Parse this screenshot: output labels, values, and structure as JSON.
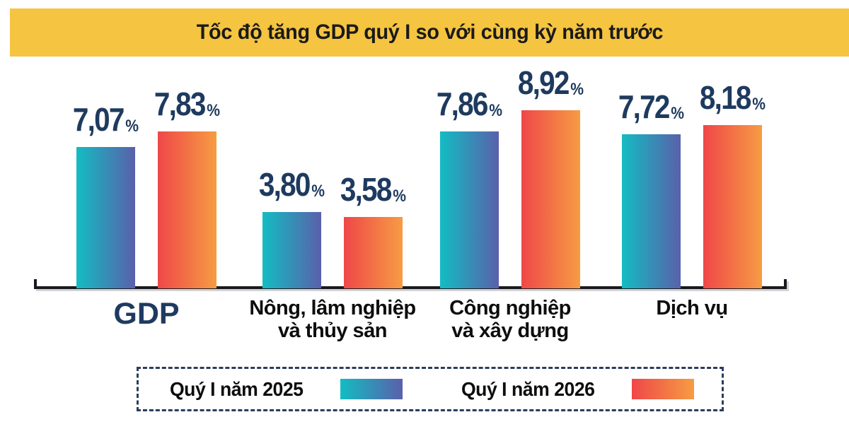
{
  "title": "Tốc độ tăng GDP quý I so với cùng kỳ năm trước",
  "colors": {
    "title_bg": "#F5C440",
    "title_text": "#1A1A1A",
    "series1_gradient_start": "#13BCC2",
    "series1_gradient_end": "#5A60AB",
    "series2_gradient_start": "#EF4748",
    "series2_gradient_end": "#F69C43",
    "value_label": "#1E3A5E",
    "gdp_label": "#1F3A60",
    "category_label": "#0D0D0D",
    "axis": "#191920",
    "legend_border": "#2B3D5C"
  },
  "chart_data": {
    "type": "bar",
    "title": "Tốc độ tăng GDP quý I so với cùng kỳ năm trước",
    "unit": "%",
    "categories": [
      "GDP",
      "Nông, lâm nghiệp và thủy sản",
      "Công nghiệp và xây dựng",
      "Dịch vụ"
    ],
    "category_lines": [
      [
        "GDP"
      ],
      [
        "Nông, lâm nghiệp",
        "và thủy sản"
      ],
      [
        "Công nghiệp",
        "và xây dựng"
      ],
      [
        "Dịch vụ"
      ]
    ],
    "series": [
      {
        "name": "Quý I năm 2025",
        "values": [
          7.07,
          3.8,
          7.86,
          7.72
        ],
        "value_labels": [
          "7,07",
          "3,80",
          "7,86",
          "7,72"
        ]
      },
      {
        "name": "Quý I năm 2026",
        "values": [
          7.83,
          3.58,
          8.92,
          8.18
        ],
        "value_labels": [
          "7,83",
          "3,58",
          "8,92",
          "8,18"
        ]
      }
    ],
    "ylim": [
      0,
      10
    ],
    "grid": false,
    "legend_position": "bottom"
  },
  "legend": {
    "items": [
      {
        "label": "Quý I năm 2025"
      },
      {
        "label": "Quý I năm 2026"
      }
    ]
  }
}
